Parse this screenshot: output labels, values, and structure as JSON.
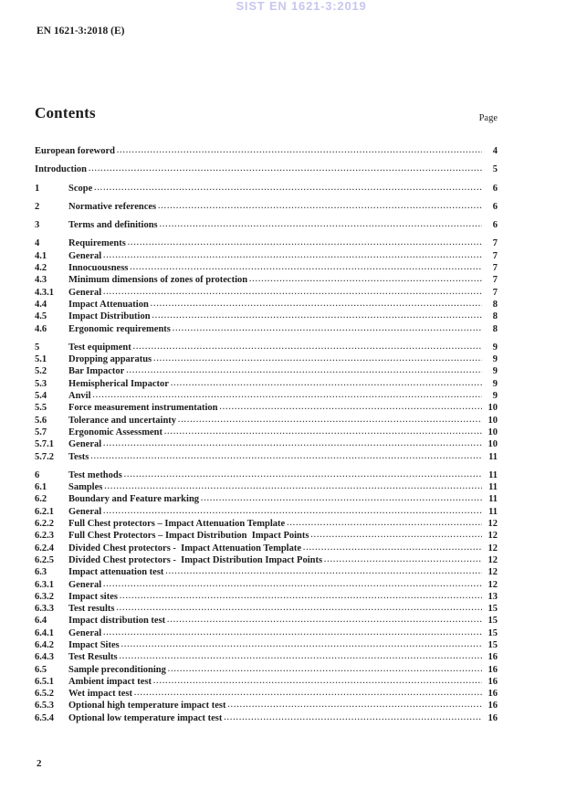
{
  "watermark": "SIST EN 1621-3:2019",
  "header": {
    "doc_ref": "EN 1621-3:2018 (E)"
  },
  "contents": {
    "title": "Contents",
    "page_label": "Page",
    "entries": [
      {
        "num": "",
        "title": "European foreword",
        "page": "4",
        "level": "top"
      },
      {
        "num": "",
        "title": "Introduction",
        "page": "5",
        "level": "top"
      },
      {
        "num": "1",
        "title": "Scope",
        "page": "6",
        "level": "top"
      },
      {
        "num": "2",
        "title": "Normative references",
        "page": "6",
        "level": "top"
      },
      {
        "num": "3",
        "title": "Terms and definitions",
        "page": "6",
        "level": "top"
      },
      {
        "num": "4",
        "title": "Requirements",
        "page": "7",
        "level": "top"
      },
      {
        "num": "4.1",
        "title": "General",
        "page": "7",
        "level": "sub"
      },
      {
        "num": "4.2",
        "title": "Innocuousness",
        "page": "7",
        "level": "sub"
      },
      {
        "num": "4.3",
        "title": "Minimum dimensions of zones of protection",
        "page": "7",
        "level": "sub"
      },
      {
        "num": "4.3.1",
        "title": "General",
        "page": "7",
        "level": "sub"
      },
      {
        "num": "4.4",
        "title": "Impact Attenuation",
        "page": "8",
        "level": "sub"
      },
      {
        "num": "4.5",
        "title": "Impact Distribution",
        "page": "8",
        "level": "sub"
      },
      {
        "num": "4.6",
        "title": "Ergonomic requirements",
        "page": "8",
        "level": "sub"
      },
      {
        "num": "5",
        "title": "Test equipment",
        "page": "9",
        "level": "top"
      },
      {
        "num": "5.1",
        "title": "Dropping apparatus",
        "page": "9",
        "level": "sub"
      },
      {
        "num": "5.2",
        "title": "Bar Impactor",
        "page": "9",
        "level": "sub"
      },
      {
        "num": "5.3",
        "title": "Hemispherical Impactor",
        "page": "9",
        "level": "sub"
      },
      {
        "num": "5.4",
        "title": "Anvil",
        "page": "9",
        "level": "sub"
      },
      {
        "num": "5.5",
        "title": "Force measurement instrumentation",
        "page": "10",
        "level": "sub"
      },
      {
        "num": "5.6",
        "title": "Tolerance and uncertainty",
        "page": "10",
        "level": "sub"
      },
      {
        "num": "5.7",
        "title": "Ergonomic Assessment",
        "page": "10",
        "level": "sub"
      },
      {
        "num": "5.7.1",
        "title": "General",
        "page": "10",
        "level": "sub"
      },
      {
        "num": "5.7.2",
        "title": "Tests",
        "page": "11",
        "level": "sub"
      },
      {
        "num": "6",
        "title": "Test methods",
        "page": "11",
        "level": "top"
      },
      {
        "num": "6.1",
        "title": "Samples",
        "page": "11",
        "level": "sub"
      },
      {
        "num": "6.2",
        "title": "Boundary and Feature marking",
        "page": "11",
        "level": "sub"
      },
      {
        "num": "6.2.1",
        "title": "General",
        "page": "11",
        "level": "sub"
      },
      {
        "num": "6.2.2",
        "title": "Full Chest protectors – Impact Attenuation Template",
        "page": "12",
        "level": "sub"
      },
      {
        "num": "6.2.3",
        "title": "Full Chest Protectors – Impact Distribution  Impact Points",
        "page": "12",
        "level": "sub"
      },
      {
        "num": "6.2.4",
        "title": "Divided Chest protectors -  Impact Attenuation Template",
        "page": "12",
        "level": "sub"
      },
      {
        "num": "6.2.5",
        "title": "Divided Chest protectors -  Impact Distribution Impact Points",
        "page": "12",
        "level": "sub"
      },
      {
        "num": "6.3",
        "title": "Impact attenuation test",
        "page": "12",
        "level": "sub"
      },
      {
        "num": "6.3.1",
        "title": "General",
        "page": "12",
        "level": "sub"
      },
      {
        "num": "6.3.2",
        "title": "Impact sites",
        "page": "13",
        "level": "sub"
      },
      {
        "num": "6.3.3",
        "title": "Test results",
        "page": "15",
        "level": "sub"
      },
      {
        "num": "6.4",
        "title": "Impact distribution test",
        "page": "15",
        "level": "sub"
      },
      {
        "num": "6.4.1",
        "title": "General",
        "page": "15",
        "level": "sub"
      },
      {
        "num": "6.4.2",
        "title": "Impact Sites",
        "page": "15",
        "level": "sub"
      },
      {
        "num": "6.4.3",
        "title": "Test Results",
        "page": "16",
        "level": "sub"
      },
      {
        "num": "6.5",
        "title": "Sample preconditioning",
        "page": "16",
        "level": "sub"
      },
      {
        "num": "6.5.1",
        "title": "Ambient impact test",
        "page": "16",
        "level": "sub"
      },
      {
        "num": "6.5.2",
        "title": "Wet impact test",
        "page": "16",
        "level": "sub"
      },
      {
        "num": "6.5.3",
        "title": "Optional high temperature impact test",
        "page": "16",
        "level": "sub"
      },
      {
        "num": "6.5.4",
        "title": "Optional low temperature impact test",
        "page": "16",
        "level": "sub"
      }
    ]
  },
  "footer": {
    "page_number": "2"
  },
  "colors": {
    "watermark": "#c7c7ef",
    "text": "#1c1c1c"
  }
}
